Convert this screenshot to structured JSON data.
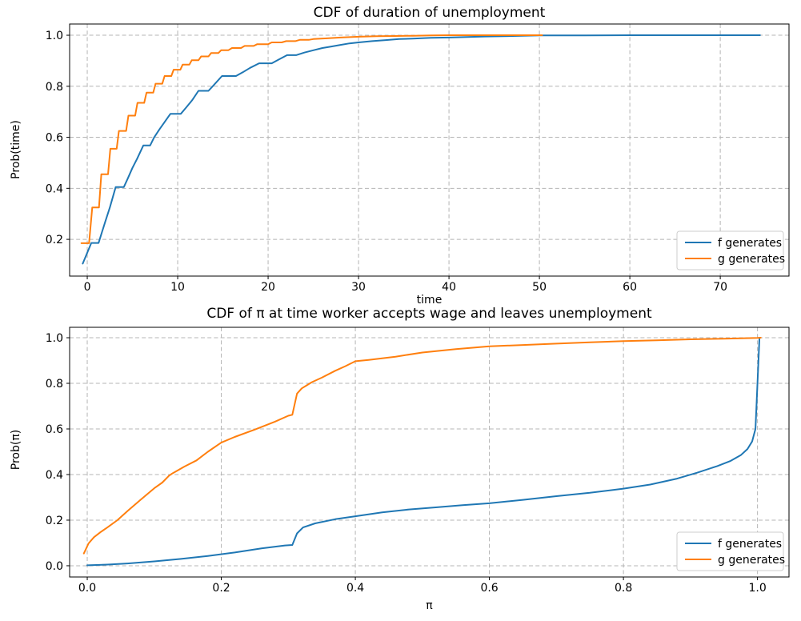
{
  "style": {
    "series_colors": [
      "#1f77b4",
      "#ff7f0e"
    ],
    "grid_color": "#b4b4b4",
    "axis_color": "#000000",
    "background": "#ffffff",
    "legend_border": "#cccccc"
  },
  "chart_data": [
    {
      "id": "top",
      "type": "line",
      "title": "CDF of duration of unemployment",
      "xlabel": "time",
      "ylabel": "Prob(time)",
      "xlim": [
        -1.95,
        77.6
      ],
      "ylim": [
        0.056,
        1.044
      ],
      "xticks": [
        0,
        10,
        20,
        30,
        40,
        50,
        60,
        70
      ],
      "xtick_labels": [
        "0",
        "10",
        "20",
        "30",
        "40",
        "50",
        "60",
        "70"
      ],
      "yticks": [
        0.2,
        0.4,
        0.6,
        0.8,
        1.0
      ],
      "ytick_labels": [
        "0.2",
        "0.4",
        "0.6",
        "0.8",
        "1.0"
      ],
      "grid": true,
      "legend_loc": "lower right",
      "series": [
        {
          "name": "f generates",
          "color": "#1f77b4",
          "x": [
            -0.5,
            0.45,
            1.25,
            1.6,
            2.0,
            2.5,
            3.15,
            4.05,
            4.5,
            5.0,
            5.5,
            6.2,
            6.95,
            7.4,
            8.0,
            8.6,
            9.2,
            10.35,
            10.9,
            11.6,
            12.3,
            13.4,
            14.0,
            14.9,
            16.45,
            17.2,
            18.0,
            19.0,
            20.4,
            21.2,
            22.1,
            23.1,
            24.0,
            25.0,
            26.0,
            27.0,
            28.0,
            29.0,
            30.0,
            31.5,
            33.0,
            34.5,
            36.0,
            38.0,
            40.0,
            42.0,
            44.0,
            46.0,
            48.0,
            50.0,
            55.0,
            60.0,
            74.4
          ],
          "y": [
            0.105,
            0.186,
            0.186,
            0.225,
            0.27,
            0.325,
            0.405,
            0.405,
            0.44,
            0.48,
            0.515,
            0.568,
            0.568,
            0.6,
            0.632,
            0.662,
            0.692,
            0.692,
            0.715,
            0.745,
            0.782,
            0.782,
            0.805,
            0.84,
            0.84,
            0.855,
            0.872,
            0.89,
            0.89,
            0.905,
            0.922,
            0.922,
            0.932,
            0.941,
            0.95,
            0.956,
            0.962,
            0.968,
            0.972,
            0.977,
            0.981,
            0.985,
            0.987,
            0.99,
            0.991,
            0.993,
            0.995,
            0.996,
            0.998,
            0.999,
            0.9995,
            1.0,
            1.0
          ]
        },
        {
          "name": "g generates",
          "color": "#ff7f0e",
          "x": [
            -0.65,
            0.2,
            0.55,
            1.3,
            1.55,
            2.3,
            2.55,
            3.25,
            3.5,
            4.3,
            4.55,
            5.3,
            5.55,
            6.3,
            6.55,
            7.3,
            7.55,
            8.3,
            8.55,
            9.3,
            9.55,
            10.3,
            10.55,
            11.3,
            11.55,
            12.3,
            12.6,
            13.4,
            13.7,
            14.5,
            14.8,
            15.6,
            16.0,
            17.0,
            17.4,
            18.4,
            18.8,
            20.0,
            20.4,
            21.5,
            22.0,
            23.0,
            23.5,
            24.5,
            25.0,
            26.5,
            28.0,
            30.0,
            32.0,
            34.0,
            36.0,
            38.0,
            40.0,
            50.3
          ],
          "y": [
            0.185,
            0.185,
            0.325,
            0.325,
            0.455,
            0.455,
            0.555,
            0.555,
            0.625,
            0.625,
            0.685,
            0.685,
            0.735,
            0.735,
            0.775,
            0.775,
            0.81,
            0.81,
            0.84,
            0.84,
            0.865,
            0.865,
            0.885,
            0.885,
            0.902,
            0.902,
            0.917,
            0.917,
            0.93,
            0.93,
            0.941,
            0.941,
            0.95,
            0.95,
            0.958,
            0.958,
            0.965,
            0.965,
            0.972,
            0.972,
            0.977,
            0.977,
            0.982,
            0.982,
            0.985,
            0.988,
            0.991,
            0.994,
            0.996,
            0.997,
            0.998,
            0.999,
            1.0,
            1.0
          ]
        }
      ]
    },
    {
      "id": "bottom",
      "type": "line",
      "title": "CDF of π at time worker accepts wage and leaves unemployment",
      "xlabel": "π",
      "ylabel": "Prob(π)",
      "xlim": [
        -0.0263,
        1.047
      ],
      "ylim": [
        -0.0493,
        1.0457
      ],
      "xticks": [
        0.0,
        0.2,
        0.4,
        0.6,
        0.8,
        1.0
      ],
      "xtick_labels": [
        "0.0",
        "0.2",
        "0.4",
        "0.6",
        "0.8",
        "1.0"
      ],
      "yticks": [
        0.0,
        0.2,
        0.4,
        0.6,
        0.8,
        1.0
      ],
      "ytick_labels": [
        "0.0",
        "0.2",
        "0.4",
        "0.6",
        "0.8",
        "1.0"
      ],
      "grid": true,
      "legend_loc": "lower right",
      "series": [
        {
          "name": "f generates",
          "color": "#1f77b4",
          "x": [
            0.0,
            0.03,
            0.06,
            0.1,
            0.14,
            0.18,
            0.22,
            0.26,
            0.295,
            0.306,
            0.313,
            0.322,
            0.34,
            0.37,
            0.4,
            0.44,
            0.48,
            0.52,
            0.56,
            0.6,
            0.65,
            0.7,
            0.75,
            0.8,
            0.84,
            0.88,
            0.91,
            0.94,
            0.96,
            0.975,
            0.985,
            0.992,
            0.997,
            1.0,
            1.003
          ],
          "y": [
            0.002,
            0.005,
            0.01,
            0.019,
            0.03,
            0.043,
            0.058,
            0.076,
            0.089,
            0.091,
            0.142,
            0.168,
            0.186,
            0.204,
            0.217,
            0.234,
            0.247,
            0.256,
            0.266,
            0.274,
            0.289,
            0.305,
            0.32,
            0.338,
            0.356,
            0.382,
            0.408,
            0.437,
            0.46,
            0.485,
            0.512,
            0.545,
            0.6,
            0.8,
            1.0
          ]
        },
        {
          "name": "g generates",
          "color": "#ff7f0e",
          "x": [
            -0.005,
            0.002,
            0.01,
            0.02,
            0.03,
            0.045,
            0.06,
            0.08,
            0.1,
            0.112,
            0.122,
            0.127,
            0.145,
            0.163,
            0.18,
            0.2,
            0.22,
            0.25,
            0.28,
            0.3,
            0.306,
            0.313,
            0.32,
            0.335,
            0.35,
            0.37,
            0.385,
            0.4,
            0.42,
            0.46,
            0.5,
            0.55,
            0.6,
            0.65,
            0.7,
            0.75,
            0.8,
            0.85,
            0.9,
            0.95,
            1.0,
            1.005
          ],
          "y": [
            0.054,
            0.098,
            0.125,
            0.148,
            0.168,
            0.2,
            0.24,
            0.29,
            0.34,
            0.365,
            0.395,
            0.405,
            0.435,
            0.462,
            0.5,
            0.54,
            0.565,
            0.597,
            0.632,
            0.658,
            0.662,
            0.755,
            0.778,
            0.805,
            0.825,
            0.855,
            0.875,
            0.897,
            0.903,
            0.917,
            0.935,
            0.95,
            0.962,
            0.968,
            0.974,
            0.98,
            0.985,
            0.989,
            0.993,
            0.996,
            0.999,
            1.0
          ]
        }
      ]
    }
  ]
}
